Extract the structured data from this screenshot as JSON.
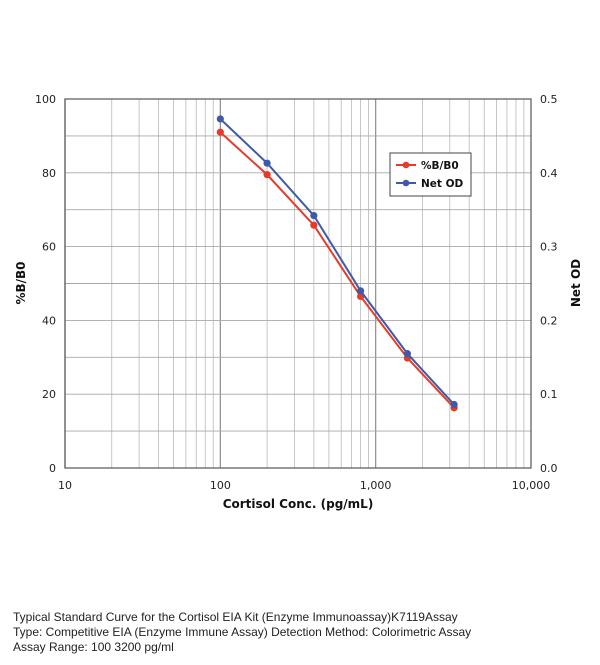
{
  "chart_data": {
    "type": "line",
    "xlabel": "Cortisol Conc. (pg/mL)",
    "ylabel": "%B/B0",
    "y2label": "Net OD",
    "x_scale": "log",
    "xlim": [
      10,
      10000
    ],
    "ylim": [
      0,
      100
    ],
    "y2lim": [
      0.0,
      0.5
    ],
    "grid": true,
    "legend_position": "top-right",
    "x_ticks": [
      "10",
      "100",
      "1,000",
      "10,000"
    ],
    "y_ticks": [
      "0",
      "20",
      "40",
      "60",
      "80",
      "100"
    ],
    "y2_ticks": [
      "0.0",
      "0.1",
      "0.2",
      "0.3",
      "0.4",
      "0.5"
    ],
    "series": [
      {
        "name": "%B/B0",
        "color": "#e53b2a",
        "axis": "left",
        "x": [
          100,
          200,
          400,
          800,
          1600,
          3200
        ],
        "y": [
          91,
          79.5,
          65.8,
          46.5,
          29.8,
          16.3
        ]
      },
      {
        "name": "Net OD",
        "color": "#3f5aa8",
        "axis": "right",
        "x": [
          100,
          200,
          400,
          800,
          1600,
          3200
        ],
        "y": [
          0.473,
          0.413,
          0.342,
          0.24,
          0.155,
          0.086
        ]
      }
    ]
  },
  "caption": {
    "line1": "Typical Standard Curve for the Cortisol EIA Kit (Enzyme Immunoassay)K7119Assay",
    "line2": "Type: Competitive EIA (Enzyme Immune Assay) Detection Method: Colorimetric Assay",
    "line3": "Assay Range: 100 3200 pg/ml"
  }
}
